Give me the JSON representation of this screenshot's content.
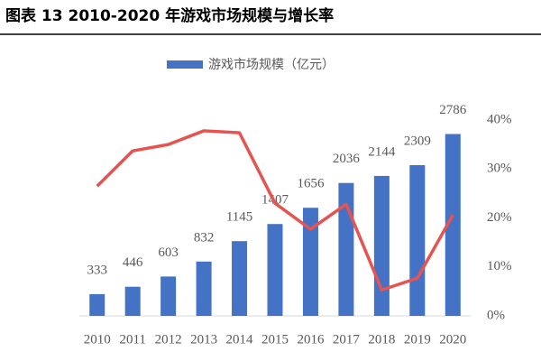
{
  "chart_data": {
    "type": "bar",
    "title": "图表 13 2010-2020 年游戏市场规模与增长率",
    "categories": [
      "2010",
      "2011",
      "2012",
      "2013",
      "2014",
      "2015",
      "2016",
      "2017",
      "2018",
      "2019",
      "2020"
    ],
    "series": [
      {
        "name": "游戏市场规模（亿元）",
        "type": "bar",
        "color": "#4472c4",
        "values": [
          333,
          446,
          603,
          832,
          1145,
          1407,
          1656,
          2036,
          2144,
          2309,
          2786
        ]
      },
      {
        "type": "line",
        "axis": "y2",
        "color": "#e8534f",
        "values": [
          26.5,
          33.7,
          35,
          37.8,
          37.4,
          23,
          17.7,
          22.8,
          5.3,
          7.7,
          20.6
        ]
      }
    ],
    "ylim": [
      0,
      3000
    ],
    "y2lim": [
      0,
      40
    ],
    "y2ticks": [
      {
        "value": 0,
        "label": "0%"
      },
      {
        "value": 10,
        "label": "10%"
      },
      {
        "value": 20,
        "label": "20%"
      },
      {
        "value": 30,
        "label": "30%"
      },
      {
        "value": 40,
        "label": "40%"
      }
    ],
    "legend": "top"
  }
}
